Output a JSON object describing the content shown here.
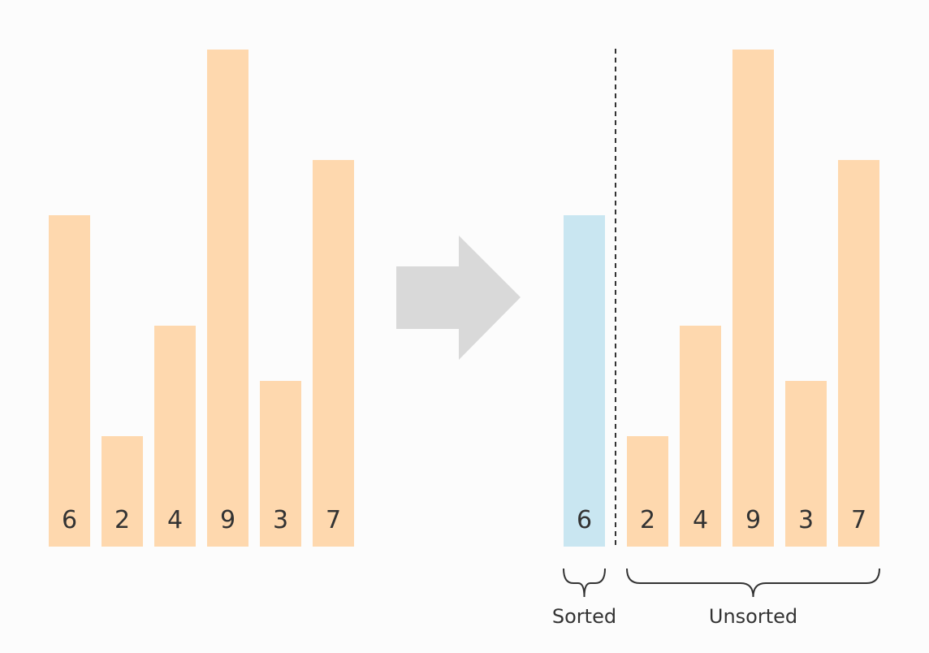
{
  "colors": {
    "unsorted_bar": "#fed8ae",
    "sorted_bar": "#c9e6f1",
    "arrow": "#d9d9d9",
    "divider": "#333333",
    "brace": "#333333",
    "text": "#333333",
    "background": "#fcfcfc"
  },
  "before": {
    "values": [
      6,
      2,
      4,
      9,
      3,
      7
    ]
  },
  "after": {
    "sorted_values": [
      6
    ],
    "unsorted_values": [
      2,
      4,
      9,
      3,
      7
    ]
  },
  "labels": {
    "sorted": "Sorted",
    "unsorted": "Unsorted"
  },
  "arrow_icon": "right-arrow-icon"
}
